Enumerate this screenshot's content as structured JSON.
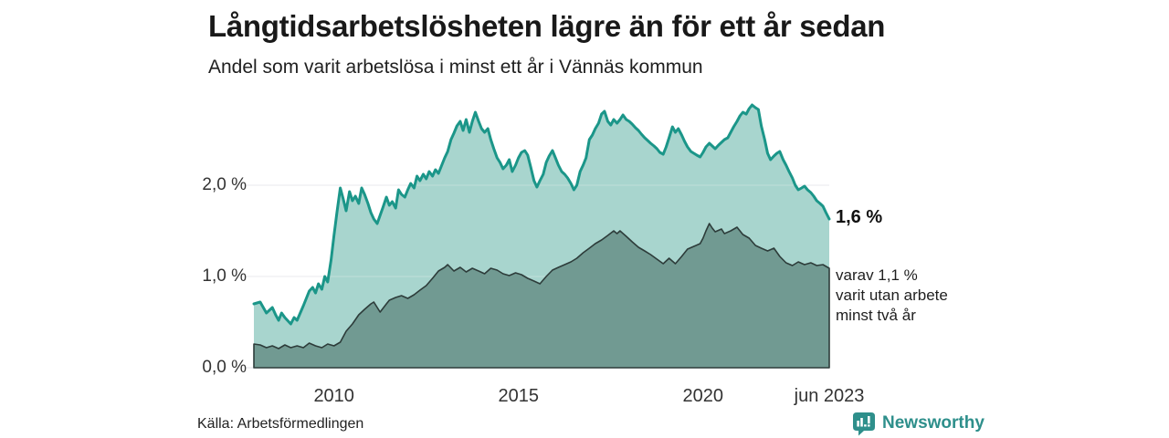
{
  "chart_data": {
    "type": "area",
    "title": "Långtidsarbetslösheten lägre än för ett år sedan",
    "subtitle": "Andel som varit arbetslösa i minst ett år i Vännäs kommun",
    "unit": "%",
    "grid": true,
    "legend": false,
    "ylim": [
      0,
      3.0
    ],
    "x_axis": {
      "range": [
        2007.83,
        2023.42
      ],
      "ticks": [
        {
          "x": 2010,
          "label": "2010"
        },
        {
          "x": 2015,
          "label": "2015"
        },
        {
          "x": 2020,
          "label": "2020"
        },
        {
          "x": 2023.42,
          "label": "jun 2023"
        }
      ]
    },
    "y_axis": {
      "ticks": [
        {
          "value": 2.0,
          "label": "2,0 %"
        },
        {
          "value": 1.0,
          "label": "1,0 %"
        },
        {
          "value": 0.0,
          "label": "0,0 %"
        }
      ]
    },
    "annotations": {
      "total_end_label": "1,6 %",
      "detail_lines": [
        "varav 1,1 %",
        "varit utan arbete",
        "minst två år"
      ]
    },
    "series": [
      {
        "label": "Arbetslösa minst ett år",
        "end_value": "1,6 %",
        "line_color": "#1b9689",
        "fill_color": "#a8d5ce",
        "points": [
          [
            2007.83,
            0.7
          ],
          [
            2008.0,
            0.72
          ],
          [
            2008.17,
            0.6
          ],
          [
            2008.33,
            0.66
          ],
          [
            2008.42,
            0.58
          ],
          [
            2008.5,
            0.52
          ],
          [
            2008.58,
            0.6
          ],
          [
            2008.67,
            0.55
          ],
          [
            2008.83,
            0.48
          ],
          [
            2008.92,
            0.55
          ],
          [
            2009.0,
            0.52
          ],
          [
            2009.17,
            0.68
          ],
          [
            2009.33,
            0.84
          ],
          [
            2009.42,
            0.88
          ],
          [
            2009.5,
            0.82
          ],
          [
            2009.58,
            0.92
          ],
          [
            2009.67,
            0.86
          ],
          [
            2009.75,
            1.0
          ],
          [
            2009.83,
            0.94
          ],
          [
            2009.92,
            1.18
          ],
          [
            2010.0,
            1.45
          ],
          [
            2010.08,
            1.7
          ],
          [
            2010.17,
            1.97
          ],
          [
            2010.25,
            1.85
          ],
          [
            2010.33,
            1.72
          ],
          [
            2010.42,
            1.93
          ],
          [
            2010.5,
            1.83
          ],
          [
            2010.58,
            1.88
          ],
          [
            2010.67,
            1.8
          ],
          [
            2010.75,
            1.97
          ],
          [
            2010.83,
            1.9
          ],
          [
            2010.92,
            1.8
          ],
          [
            2011.0,
            1.7
          ],
          [
            2011.08,
            1.63
          ],
          [
            2011.17,
            1.58
          ],
          [
            2011.33,
            1.76
          ],
          [
            2011.42,
            1.87
          ],
          [
            2011.5,
            1.78
          ],
          [
            2011.58,
            1.82
          ],
          [
            2011.67,
            1.75
          ],
          [
            2011.75,
            1.95
          ],
          [
            2011.83,
            1.9
          ],
          [
            2011.92,
            1.87
          ],
          [
            2012.0,
            1.95
          ],
          [
            2012.08,
            2.02
          ],
          [
            2012.17,
            1.97
          ],
          [
            2012.25,
            2.1
          ],
          [
            2012.33,
            2.05
          ],
          [
            2012.42,
            2.12
          ],
          [
            2012.5,
            2.07
          ],
          [
            2012.58,
            2.15
          ],
          [
            2012.67,
            2.1
          ],
          [
            2012.75,
            2.17
          ],
          [
            2012.83,
            2.13
          ],
          [
            2012.92,
            2.22
          ],
          [
            2013.0,
            2.3
          ],
          [
            2013.08,
            2.37
          ],
          [
            2013.17,
            2.5
          ],
          [
            2013.25,
            2.57
          ],
          [
            2013.33,
            2.65
          ],
          [
            2013.42,
            2.7
          ],
          [
            2013.5,
            2.6
          ],
          [
            2013.58,
            2.72
          ],
          [
            2013.67,
            2.58
          ],
          [
            2013.75,
            2.7
          ],
          [
            2013.83,
            2.8
          ],
          [
            2013.92,
            2.7
          ],
          [
            2014.0,
            2.62
          ],
          [
            2014.08,
            2.58
          ],
          [
            2014.17,
            2.62
          ],
          [
            2014.25,
            2.5
          ],
          [
            2014.33,
            2.4
          ],
          [
            2014.42,
            2.3
          ],
          [
            2014.5,
            2.25
          ],
          [
            2014.58,
            2.18
          ],
          [
            2014.67,
            2.22
          ],
          [
            2014.75,
            2.28
          ],
          [
            2014.83,
            2.15
          ],
          [
            2014.92,
            2.22
          ],
          [
            2015.0,
            2.3
          ],
          [
            2015.08,
            2.36
          ],
          [
            2015.17,
            2.38
          ],
          [
            2015.25,
            2.33
          ],
          [
            2015.33,
            2.2
          ],
          [
            2015.42,
            2.05
          ],
          [
            2015.5,
            1.98
          ],
          [
            2015.58,
            2.05
          ],
          [
            2015.67,
            2.12
          ],
          [
            2015.75,
            2.25
          ],
          [
            2015.83,
            2.32
          ],
          [
            2015.92,
            2.38
          ],
          [
            2016.0,
            2.3
          ],
          [
            2016.08,
            2.22
          ],
          [
            2016.17,
            2.15
          ],
          [
            2016.25,
            2.12
          ],
          [
            2016.33,
            2.08
          ],
          [
            2016.42,
            2.02
          ],
          [
            2016.5,
            1.95
          ],
          [
            2016.58,
            2.0
          ],
          [
            2016.67,
            2.15
          ],
          [
            2016.75,
            2.22
          ],
          [
            2016.83,
            2.3
          ],
          [
            2016.92,
            2.5
          ],
          [
            2017.0,
            2.55
          ],
          [
            2017.08,
            2.62
          ],
          [
            2017.17,
            2.68
          ],
          [
            2017.25,
            2.78
          ],
          [
            2017.33,
            2.81
          ],
          [
            2017.42,
            2.7
          ],
          [
            2017.5,
            2.66
          ],
          [
            2017.58,
            2.72
          ],
          [
            2017.67,
            2.68
          ],
          [
            2017.75,
            2.72
          ],
          [
            2017.83,
            2.77
          ],
          [
            2017.92,
            2.72
          ],
          [
            2018.0,
            2.7
          ],
          [
            2018.08,
            2.67
          ],
          [
            2018.17,
            2.63
          ],
          [
            2018.25,
            2.6
          ],
          [
            2018.33,
            2.56
          ],
          [
            2018.42,
            2.52
          ],
          [
            2018.5,
            2.49
          ],
          [
            2018.58,
            2.46
          ],
          [
            2018.67,
            2.43
          ],
          [
            2018.75,
            2.4
          ],
          [
            2018.83,
            2.36
          ],
          [
            2018.92,
            2.34
          ],
          [
            2019.0,
            2.42
          ],
          [
            2019.08,
            2.52
          ],
          [
            2019.17,
            2.64
          ],
          [
            2019.25,
            2.58
          ],
          [
            2019.33,
            2.62
          ],
          [
            2019.42,
            2.55
          ],
          [
            2019.5,
            2.48
          ],
          [
            2019.58,
            2.42
          ],
          [
            2019.67,
            2.37
          ],
          [
            2019.75,
            2.35
          ],
          [
            2019.83,
            2.33
          ],
          [
            2019.92,
            2.31
          ],
          [
            2020.0,
            2.36
          ],
          [
            2020.08,
            2.42
          ],
          [
            2020.17,
            2.46
          ],
          [
            2020.25,
            2.43
          ],
          [
            2020.33,
            2.4
          ],
          [
            2020.42,
            2.44
          ],
          [
            2020.5,
            2.47
          ],
          [
            2020.58,
            2.5
          ],
          [
            2020.67,
            2.52
          ],
          [
            2020.75,
            2.58
          ],
          [
            2020.83,
            2.64
          ],
          [
            2020.92,
            2.7
          ],
          [
            2021.0,
            2.76
          ],
          [
            2021.08,
            2.8
          ],
          [
            2021.17,
            2.78
          ],
          [
            2021.25,
            2.84
          ],
          [
            2021.33,
            2.88
          ],
          [
            2021.42,
            2.85
          ],
          [
            2021.5,
            2.83
          ],
          [
            2021.58,
            2.65
          ],
          [
            2021.67,
            2.5
          ],
          [
            2021.75,
            2.35
          ],
          [
            2021.83,
            2.28
          ],
          [
            2021.92,
            2.32
          ],
          [
            2022.0,
            2.35
          ],
          [
            2022.08,
            2.37
          ],
          [
            2022.17,
            2.28
          ],
          [
            2022.25,
            2.22
          ],
          [
            2022.33,
            2.15
          ],
          [
            2022.42,
            2.08
          ],
          [
            2022.5,
            2.0
          ],
          [
            2022.58,
            1.95
          ],
          [
            2022.67,
            1.97
          ],
          [
            2022.75,
            1.99
          ],
          [
            2022.83,
            1.95
          ],
          [
            2022.92,
            1.92
          ],
          [
            2023.0,
            1.88
          ],
          [
            2023.08,
            1.83
          ],
          [
            2023.17,
            1.8
          ],
          [
            2023.25,
            1.77
          ],
          [
            2023.33,
            1.7
          ],
          [
            2023.42,
            1.63
          ]
        ]
      },
      {
        "label": "Arbetslösa minst två år",
        "end_value": "1,1 %",
        "line_color": "#2d3c3a",
        "fill_color": "#719a92",
        "points": [
          [
            2007.83,
            0.26
          ],
          [
            2008.0,
            0.25
          ],
          [
            2008.17,
            0.22
          ],
          [
            2008.33,
            0.24
          ],
          [
            2008.5,
            0.21
          ],
          [
            2008.67,
            0.25
          ],
          [
            2008.83,
            0.22
          ],
          [
            2009.0,
            0.24
          ],
          [
            2009.17,
            0.22
          ],
          [
            2009.33,
            0.27
          ],
          [
            2009.5,
            0.24
          ],
          [
            2009.67,
            0.22
          ],
          [
            2009.83,
            0.26
          ],
          [
            2010.0,
            0.24
          ],
          [
            2010.17,
            0.28
          ],
          [
            2010.33,
            0.4
          ],
          [
            2010.5,
            0.48
          ],
          [
            2010.67,
            0.58
          ],
          [
            2010.83,
            0.64
          ],
          [
            2011.0,
            0.7
          ],
          [
            2011.08,
            0.72
          ],
          [
            2011.25,
            0.61
          ],
          [
            2011.42,
            0.7
          ],
          [
            2011.5,
            0.74
          ],
          [
            2011.67,
            0.77
          ],
          [
            2011.83,
            0.79
          ],
          [
            2012.0,
            0.76
          ],
          [
            2012.17,
            0.8
          ],
          [
            2012.33,
            0.85
          ],
          [
            2012.5,
            0.9
          ],
          [
            2012.67,
            0.98
          ],
          [
            2012.83,
            1.06
          ],
          [
            2013.0,
            1.1
          ],
          [
            2013.08,
            1.13
          ],
          [
            2013.25,
            1.06
          ],
          [
            2013.42,
            1.1
          ],
          [
            2013.58,
            1.05
          ],
          [
            2013.75,
            1.09
          ],
          [
            2013.92,
            1.06
          ],
          [
            2014.08,
            1.03
          ],
          [
            2014.25,
            1.09
          ],
          [
            2014.42,
            1.07
          ],
          [
            2014.58,
            1.03
          ],
          [
            2014.75,
            1.01
          ],
          [
            2014.92,
            1.04
          ],
          [
            2015.08,
            1.02
          ],
          [
            2015.25,
            0.98
          ],
          [
            2015.42,
            0.95
          ],
          [
            2015.58,
            0.92
          ],
          [
            2015.75,
            1.0
          ],
          [
            2015.92,
            1.07
          ],
          [
            2016.08,
            1.1
          ],
          [
            2016.25,
            1.13
          ],
          [
            2016.42,
            1.16
          ],
          [
            2016.58,
            1.2
          ],
          [
            2016.75,
            1.26
          ],
          [
            2016.92,
            1.31
          ],
          [
            2017.08,
            1.36
          ],
          [
            2017.25,
            1.4
          ],
          [
            2017.42,
            1.45
          ],
          [
            2017.58,
            1.5
          ],
          [
            2017.67,
            1.47
          ],
          [
            2017.75,
            1.5
          ],
          [
            2017.92,
            1.44
          ],
          [
            2018.08,
            1.38
          ],
          [
            2018.25,
            1.32
          ],
          [
            2018.42,
            1.28
          ],
          [
            2018.58,
            1.24
          ],
          [
            2018.75,
            1.19
          ],
          [
            2018.92,
            1.14
          ],
          [
            2019.08,
            1.2
          ],
          [
            2019.25,
            1.14
          ],
          [
            2019.42,
            1.22
          ],
          [
            2019.58,
            1.3
          ],
          [
            2019.75,
            1.33
          ],
          [
            2019.92,
            1.36
          ],
          [
            2020.0,
            1.42
          ],
          [
            2020.08,
            1.5
          ],
          [
            2020.17,
            1.58
          ],
          [
            2020.25,
            1.53
          ],
          [
            2020.33,
            1.49
          ],
          [
            2020.5,
            1.52
          ],
          [
            2020.58,
            1.47
          ],
          [
            2020.75,
            1.5
          ],
          [
            2020.92,
            1.54
          ],
          [
            2021.0,
            1.5
          ],
          [
            2021.08,
            1.46
          ],
          [
            2021.25,
            1.42
          ],
          [
            2021.42,
            1.34
          ],
          [
            2021.58,
            1.31
          ],
          [
            2021.75,
            1.28
          ],
          [
            2021.92,
            1.31
          ],
          [
            2022.08,
            1.22
          ],
          [
            2022.25,
            1.15
          ],
          [
            2022.42,
            1.12
          ],
          [
            2022.58,
            1.16
          ],
          [
            2022.75,
            1.13
          ],
          [
            2022.92,
            1.15
          ],
          [
            2023.08,
            1.12
          ],
          [
            2023.25,
            1.13
          ],
          [
            2023.42,
            1.09
          ]
        ]
      }
    ]
  },
  "footer": {
    "source": "Källa: Arbetsförmedlingen",
    "brand_name": "Newsworthy",
    "brand_color": "#2e8f8b",
    "brand_icon": "bar-chart-speech-bubble"
  },
  "colors": {
    "background": "#ffffff",
    "gridline": "#e2e2e7",
    "axis_text": "#333333",
    "title_text": "#191919"
  }
}
